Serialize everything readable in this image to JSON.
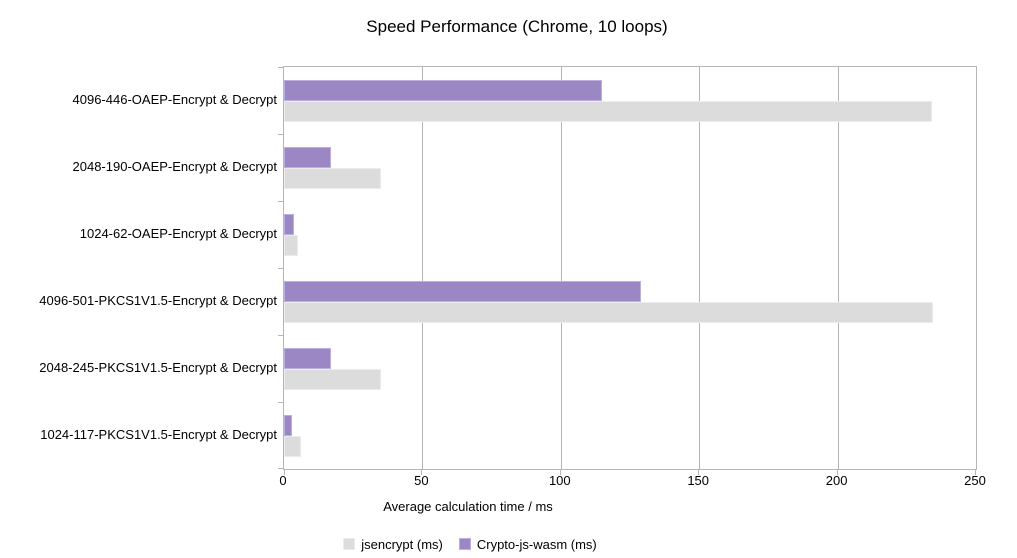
{
  "title": "Speed Performance (Chrome, 10 loops)",
  "colors": {
    "jsencrypt_fill": "#dcdcdc",
    "jsencrypt_border": "#ececec",
    "crypto_js_wasm_fill": "#9b87c4",
    "crypto_js_wasm_border": "#bcaede",
    "frame": "#b5b5b5",
    "text": "#000000",
    "background": "#ffffff"
  },
  "chart_data": {
    "type": "bar",
    "orientation": "horizontal",
    "title": "Speed Performance (Chrome, 10 loops)",
    "categories": [
      "4096-446-OAEP-Encrypt & Decrypt",
      "2048-190-OAEP-Encrypt & Decrypt",
      "1024-62-OAEP-Encrypt & Decrypt",
      "4096-501-PKCS1V1.5-Encrypt & Decrypt",
      "2048-245-PKCS1V1.5-Encrypt & Decrypt",
      "1024-117-PKCS1V1.5-Encrypt & Decrypt"
    ],
    "series": [
      {
        "name": "jsencrypt (ms)",
        "color": "#dcdcdc",
        "values": [
          234,
          35,
          5,
          234.5,
          35,
          6
        ]
      },
      {
        "name": "Crypto-js-wasm (ms)",
        "color": "#9b87c4",
        "values": [
          115,
          17,
          3.5,
          129,
          17,
          3
        ]
      }
    ],
    "xlabel": "Average calculation time / ms",
    "ylabel": "",
    "xlim": [
      0,
      250
    ],
    "xticks": [
      0,
      50,
      100,
      150,
      200,
      250
    ],
    "grid": true,
    "legend_position": "bottom",
    "bar_order_in_group_top_to_bottom": [
      "Crypto-js-wasm (ms)",
      "jsencrypt (ms)"
    ]
  }
}
